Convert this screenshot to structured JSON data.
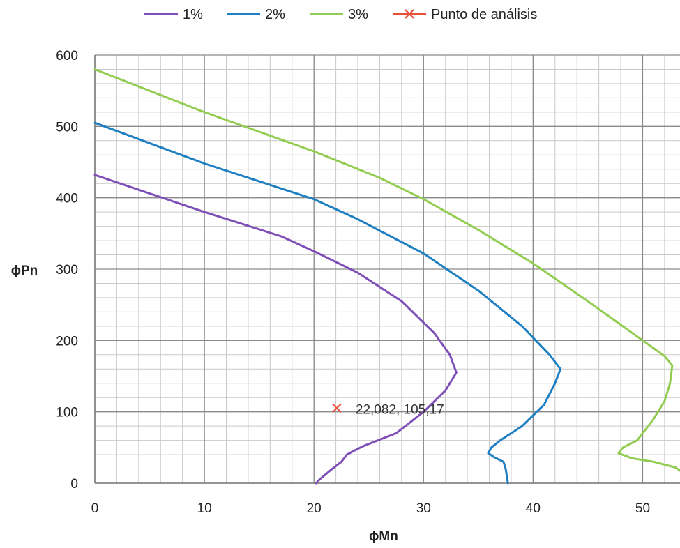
{
  "chart_data": {
    "type": "line",
    "xlabel": "ϕMn",
    "ylabel": "ϕPn",
    "xlim": [
      0,
      55
    ],
    "ylim": [
      0,
      600
    ],
    "x_ticks": [
      0,
      10,
      20,
      30,
      40,
      50
    ],
    "y_ticks": [
      0,
      100,
      200,
      300,
      400,
      500,
      600
    ],
    "x_minor_step": 2,
    "y_minor_step": 20,
    "grid": true,
    "legend_position": "top",
    "series": [
      {
        "name": "1%",
        "color": "#7F4FB8",
        "points": [
          [
            0,
            432
          ],
          [
            10,
            380
          ],
          [
            17,
            346
          ],
          [
            20,
            325
          ],
          [
            24,
            295
          ],
          [
            28,
            255
          ],
          [
            31,
            210
          ],
          [
            32.4,
            180
          ],
          [
            33,
            155
          ],
          [
            32,
            130
          ],
          [
            30,
            100
          ],
          [
            27.5,
            70
          ],
          [
            24.5,
            52
          ],
          [
            23.6,
            45
          ],
          [
            23,
            40
          ],
          [
            22.5,
            30
          ],
          [
            21.5,
            18
          ],
          [
            20.5,
            5
          ],
          [
            20.2,
            0
          ]
        ]
      },
      {
        "name": "2%",
        "color": "#1E7FC2",
        "points": [
          [
            0,
            505
          ],
          [
            10,
            448
          ],
          [
            20,
            398
          ],
          [
            24,
            370
          ],
          [
            30,
            322
          ],
          [
            35,
            270
          ],
          [
            39,
            220
          ],
          [
            41.5,
            180
          ],
          [
            42.5,
            160
          ],
          [
            42,
            140
          ],
          [
            41,
            110
          ],
          [
            39,
            80
          ],
          [
            37,
            60
          ],
          [
            36.2,
            50
          ],
          [
            35.9,
            42
          ],
          [
            36.5,
            36
          ],
          [
            37.3,
            30
          ],
          [
            37.5,
            20
          ],
          [
            37.6,
            10
          ],
          [
            37.7,
            0
          ]
        ]
      },
      {
        "name": "3%",
        "color": "#92CD52",
        "points": [
          [
            0,
            580
          ],
          [
            10,
            520
          ],
          [
            20,
            465
          ],
          [
            26,
            428
          ],
          [
            30,
            398
          ],
          [
            35,
            355
          ],
          [
            40,
            308
          ],
          [
            45,
            255
          ],
          [
            50,
            200
          ],
          [
            52,
            178
          ],
          [
            52.7,
            165
          ],
          [
            52.5,
            140
          ],
          [
            52,
            115
          ],
          [
            51,
            90
          ],
          [
            49.5,
            60
          ],
          [
            48.2,
            50
          ],
          [
            47.8,
            42
          ],
          [
            49,
            35
          ],
          [
            51,
            30
          ],
          [
            53,
            22
          ],
          [
            55,
            0
          ]
        ]
      },
      {
        "name": "Punto de análisis",
        "color": "#E8503A",
        "marker": "x",
        "points": [
          [
            22.082,
            105.17
          ]
        ],
        "data_label": "22,082, 105,17"
      }
    ]
  }
}
